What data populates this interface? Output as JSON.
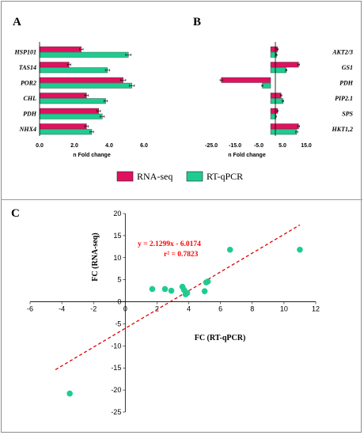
{
  "colors": {
    "rna_seq": "#e0115f",
    "rt_qpcr": "#1fcc8f",
    "fit_line": "#e00000",
    "equation": "#ff0000"
  },
  "legend": {
    "rna_seq": "RNA-seq",
    "rt_qpcr": "RT-qPCR"
  },
  "chart_data": [
    {
      "panel": "A",
      "type": "bar",
      "orientation": "horizontal",
      "categories": [
        "HSP101",
        "TAS14",
        "POR2",
        "CHL",
        "PDH",
        "NHX4"
      ],
      "series": [
        {
          "name": "RNA-seq",
          "values": [
            2.4,
            1.7,
            4.8,
            2.7,
            3.4,
            2.7
          ],
          "errors": [
            0.1,
            0.1,
            0.15,
            0.1,
            0.1,
            0.1
          ]
        },
        {
          "name": "RT-qPCR",
          "values": [
            5.1,
            3.9,
            5.3,
            3.8,
            3.6,
            3.0
          ],
          "errors": [
            0.15,
            0.12,
            0.15,
            0.1,
            0.12,
            0.1
          ]
        }
      ],
      "xlabel": "n Fold change",
      "xlim": [
        0,
        6
      ],
      "xticks": [
        "0.0",
        "2.0",
        "4.0",
        "6.0"
      ],
      "xtick_values": [
        0,
        2,
        4,
        6
      ]
    },
    {
      "panel": "B",
      "type": "bar",
      "orientation": "horizontal",
      "categories": [
        "AKT2/3",
        "GS1",
        "PDH",
        "PIP2.1",
        "SPS",
        "HKT1,2"
      ],
      "series": [
        {
          "name": "RNA-seq",
          "values": [
            2.9,
            11.8,
            -20.8,
            4.4,
            2.9,
            11.8
          ],
          "errors": [
            0.3,
            0.4,
            0.5,
            0.3,
            0.2,
            0.4
          ]
        },
        {
          "name": "RT-qPCR",
          "values": [
            2.5,
            6.6,
            -3.5,
            5.2,
            2.2,
            11.0
          ],
          "errors": [
            0.2,
            0.3,
            0.2,
            0.3,
            0.2,
            0.4
          ]
        }
      ],
      "xlabel": "n Fold change",
      "xlim": [
        -25,
        15
      ],
      "xticks": [
        "-25.0",
        "-15.0",
        "-5.0",
        "5.0",
        "15.0"
      ],
      "xtick_values": [
        -25,
        -15,
        -5,
        5,
        15
      ]
    },
    {
      "panel": "C",
      "type": "scatter",
      "xlabel": "FC (RT-qPCR)",
      "ylabel": "FC (RNA-seq)",
      "xlim": [
        -6,
        12
      ],
      "ylim": [
        -25,
        20
      ],
      "xticks": [
        "-6",
        "-4",
        "-2",
        "0",
        "2",
        "4",
        "6",
        "8",
        "10",
        "12"
      ],
      "xtick_values": [
        -6,
        -4,
        -2,
        0,
        2,
        4,
        6,
        8,
        10,
        12
      ],
      "yticks": [
        "20",
        "15",
        "10",
        "5",
        "0",
        "-5",
        "-10",
        "-15",
        "-20",
        "-25"
      ],
      "ytick_values": [
        20,
        15,
        10,
        5,
        0,
        -5,
        -10,
        -15,
        -20,
        -25
      ],
      "x": [
        -3.5,
        1.7,
        2.5,
        2.9,
        3.6,
        3.7,
        3.8,
        3.9,
        5.0,
        5.1,
        5.2,
        6.6,
        11.0
      ],
      "y": [
        -20.8,
        2.9,
        2.9,
        2.5,
        3.4,
        2.7,
        1.7,
        2.0,
        2.4,
        4.4,
        4.6,
        11.8,
        11.8
      ],
      "trendline": {
        "slope": 2.1299,
        "intercept": -6.0174,
        "x_range": [
          -4.4,
          11
        ]
      },
      "equation": "y = 2.1299x - 6.0174",
      "r2": "r² = 0.7823"
    }
  ]
}
